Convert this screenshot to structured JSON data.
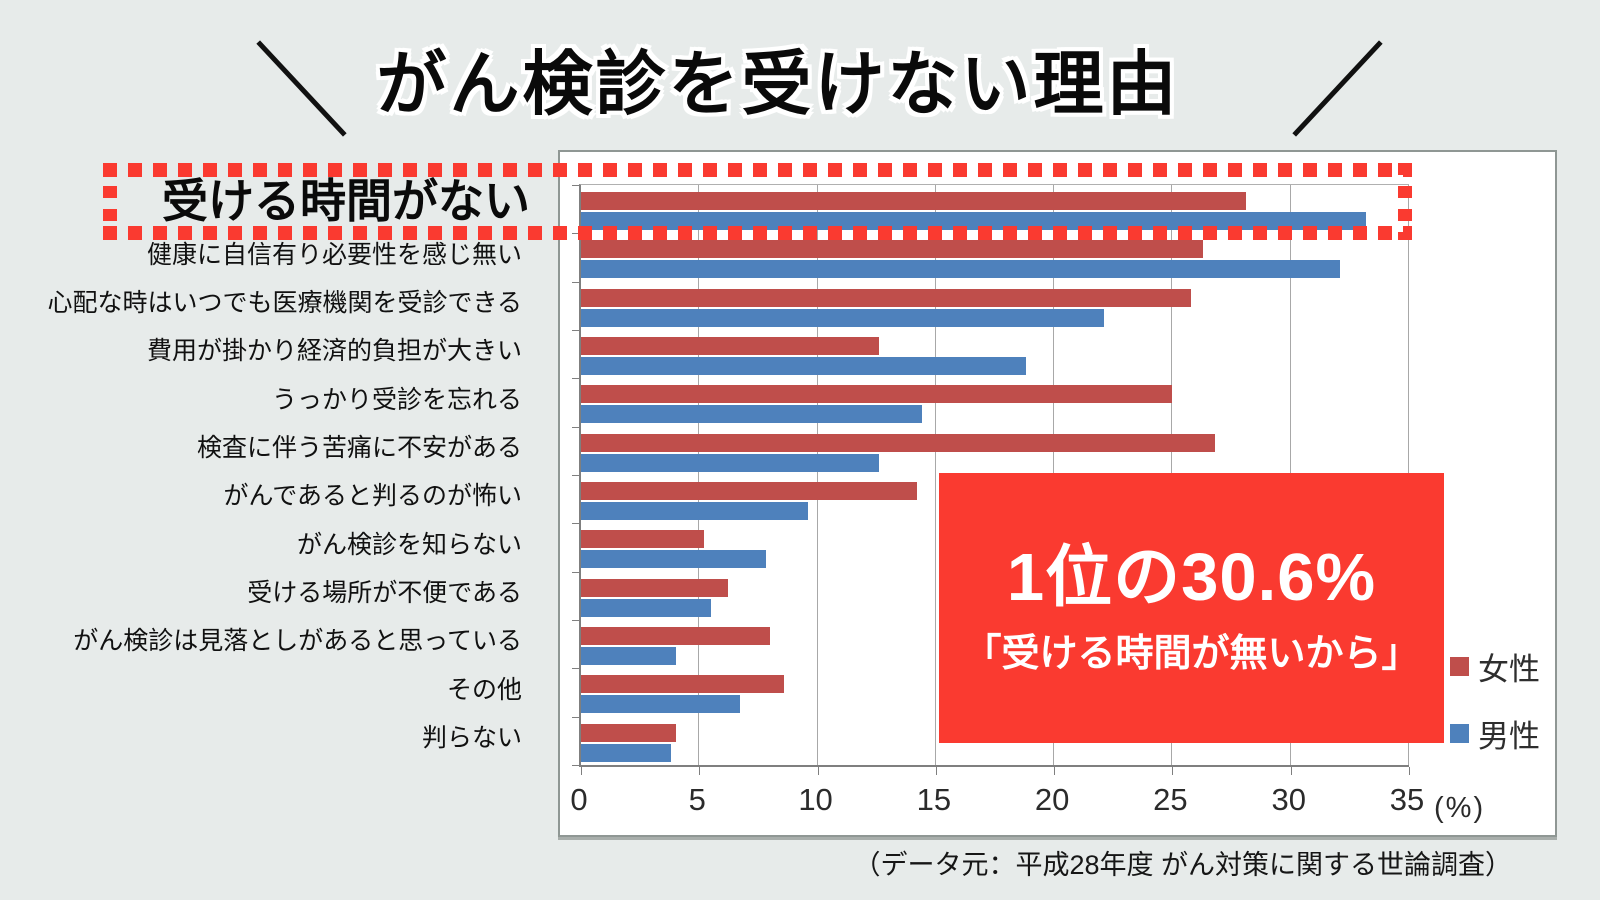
{
  "chart_data": {
    "type": "bar",
    "orientation": "horizontal",
    "title": "がん検診を受けない理由",
    "categories": [
      "受ける時間がない",
      "健康に自信有り必要性を感じ無い",
      "心配な時はいつでも医療機関を受診できる",
      "費用が掛かり経済的負担が大きい",
      "うっかり受診を忘れる",
      "検査に伴う苦痛に不安がある",
      "がんであると判るのが怖い",
      "がん検診を知らない",
      "受ける場所が不便である",
      "がん検診は見落としがあると思っている",
      "その他",
      "判らない"
    ],
    "series": [
      {
        "name": "女性",
        "color": "#bf4e4b",
        "values": [
          28.1,
          26.3,
          25.8,
          12.6,
          25.0,
          26.8,
          14.2,
          5.2,
          6.2,
          8.0,
          8.6,
          4.0
        ]
      },
      {
        "name": "男性",
        "color": "#4e81bc",
        "values": [
          33.2,
          32.1,
          22.1,
          18.8,
          14.4,
          12.6,
          9.6,
          7.8,
          5.5,
          4.0,
          6.7,
          3.8
        ]
      }
    ],
    "x_ticks": [
      0,
      5,
      10,
      15,
      20,
      25,
      30,
      35
    ],
    "xlim": [
      0,
      35
    ],
    "unit_label": "(%)",
    "grid": true,
    "legend_position": "right"
  },
  "highlight": {
    "highlighted_category": "受ける時間がない",
    "callout_line1": "1位の30.6%",
    "callout_line2": "「受ける時間が無いから」",
    "accent_color": "#fa3a30"
  },
  "source": {
    "text": "（データ元：平成28年度 がん対策に関する世論調査）"
  }
}
